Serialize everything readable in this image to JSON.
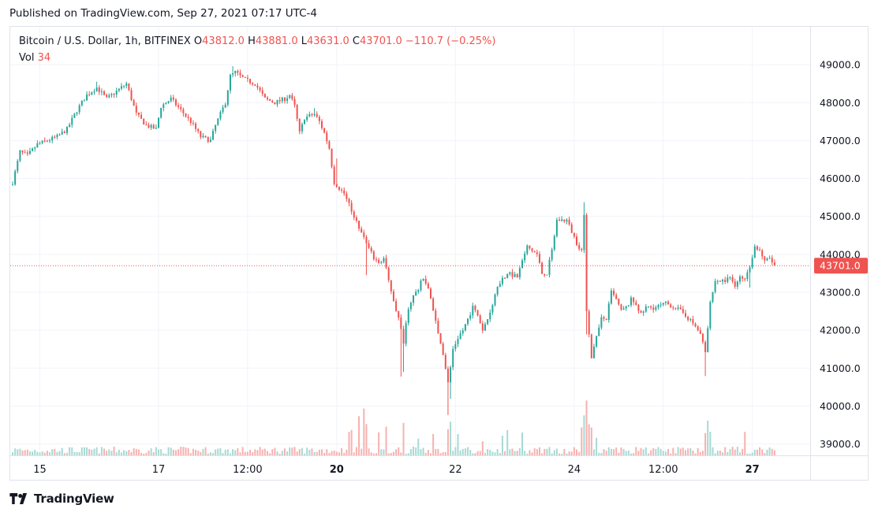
{
  "header": {
    "published": "Published on TradingView.com, Sep 27, 2021 07:17 UTC-4"
  },
  "legend": {
    "symbol": "Bitcoin / U.S. Dollar, 1h, BITFINEX",
    "o_label": "O",
    "o_value": "43812.0",
    "h_label": "H",
    "h_value": "43881.0",
    "l_label": "L",
    "l_value": "43631.0",
    "c_label": "C",
    "c_value": "43701.0",
    "change": "−110.7 (−0.25%)",
    "vol_label": "Vol",
    "vol_value": "34"
  },
  "footer": {
    "brand": "TradingView",
    "logo_icon": "tradingview-logo-icon"
  },
  "colors": {
    "up": "#26a69a",
    "down": "#ef5350",
    "up_vol": "#a8d9d4",
    "down_vol": "#f5b2b0",
    "grid": "#f0f3fa",
    "text": "#131722"
  },
  "chart_data": {
    "type": "candlestick",
    "interval": "1h",
    "ylim": [
      38700,
      50000
    ],
    "y_ticks": [
      "49000.0",
      "48000.0",
      "47000.0",
      "46000.0",
      "45000.0",
      "44000.0",
      "43000.0",
      "42000.0",
      "41000.0",
      "40000.0",
      "39000.0"
    ],
    "y_tick_values": [
      49000,
      48000,
      47000,
      46000,
      45000,
      44000,
      43000,
      42000,
      41000,
      40000,
      39000
    ],
    "x_ticks": [
      {
        "label": "15",
        "bar": 11,
        "bold": false
      },
      {
        "label": "17",
        "bar": 59,
        "bold": false
      },
      {
        "label": "12:00",
        "bar": 95,
        "bold": false
      },
      {
        "label": "20",
        "bar": 131,
        "bold": true
      },
      {
        "label": "22",
        "bar": 179,
        "bold": false
      },
      {
        "label": "24",
        "bar": 227,
        "bold": false
      },
      {
        "label": "12:00",
        "bar": 263,
        "bold": false
      },
      {
        "label": "27",
        "bar": 299,
        "bold": true
      }
    ],
    "current_price": 43701,
    "current_price_label": "43701.0",
    "anchors": [
      [
        0,
        45900
      ],
      [
        3,
        46700
      ],
      [
        6,
        46600
      ],
      [
        10,
        46900
      ],
      [
        14,
        47000
      ],
      [
        18,
        47100
      ],
      [
        22,
        47300
      ],
      [
        26,
        47800
      ],
      [
        30,
        48200
      ],
      [
        34,
        48400
      ],
      [
        38,
        48100
      ],
      [
        42,
        48300
      ],
      [
        46,
        48500
      ],
      [
        48,
        48100
      ],
      [
        50,
        47700
      ],
      [
        54,
        47400
      ],
      [
        58,
        47300
      ],
      [
        60,
        47900
      ],
      [
        64,
        48100
      ],
      [
        68,
        47800
      ],
      [
        72,
        47500
      ],
      [
        76,
        47100
      ],
      [
        80,
        47000
      ],
      [
        82,
        47400
      ],
      [
        86,
        48000
      ],
      [
        88,
        48700
      ],
      [
        90,
        48800
      ],
      [
        94,
        48600
      ],
      [
        98,
        48500
      ],
      [
        102,
        48100
      ],
      [
        106,
        48000
      ],
      [
        110,
        48100
      ],
      [
        112,
        48200
      ],
      [
        114,
        47900
      ],
      [
        116,
        47200
      ],
      [
        118,
        47600
      ],
      [
        122,
        47700
      ],
      [
        124,
        47500
      ],
      [
        126,
        47200
      ],
      [
        128,
        46800
      ],
      [
        130,
        45900
      ],
      [
        134,
        45600
      ],
      [
        138,
        45000
      ],
      [
        142,
        44400
      ],
      [
        146,
        43900
      ],
      [
        148,
        43800
      ],
      [
        150,
        43900
      ],
      [
        152,
        43300
      ],
      [
        154,
        42800
      ],
      [
        156,
        42300
      ],
      [
        158,
        41700
      ],
      [
        160,
        42600
      ],
      [
        162,
        42900
      ],
      [
        164,
        43100
      ],
      [
        166,
        43400
      ],
      [
        168,
        43100
      ],
      [
        170,
        42500
      ],
      [
        172,
        41900
      ],
      [
        174,
        41400
      ],
      [
        176,
        40600
      ],
      [
        178,
        41500
      ],
      [
        180,
        41800
      ],
      [
        182,
        42000
      ],
      [
        184,
        42300
      ],
      [
        186,
        42600
      ],
      [
        188,
        42400
      ],
      [
        190,
        42000
      ],
      [
        192,
        42300
      ],
      [
        194,
        42700
      ],
      [
        196,
        43200
      ],
      [
        200,
        43500
      ],
      [
        204,
        43400
      ],
      [
        206,
        43800
      ],
      [
        208,
        44200
      ],
      [
        212,
        44000
      ],
      [
        214,
        43500
      ],
      [
        216,
        43500
      ],
      [
        218,
        44100
      ],
      [
        220,
        44900
      ],
      [
        224,
        44900
      ],
      [
        226,
        44600
      ],
      [
        228,
        44300
      ],
      [
        230,
        44100
      ],
      [
        231,
        45000
      ],
      [
        232,
        42500
      ],
      [
        234,
        41300
      ],
      [
        236,
        41800
      ],
      [
        238,
        42300
      ],
      [
        240,
        42300
      ],
      [
        242,
        43000
      ],
      [
        244,
        42800
      ],
      [
        246,
        42500
      ],
      [
        248,
        42600
      ],
      [
        250,
        42800
      ],
      [
        252,
        42700
      ],
      [
        254,
        42400
      ],
      [
        256,
        42600
      ],
      [
        260,
        42600
      ],
      [
        264,
        42700
      ],
      [
        268,
        42600
      ],
      [
        272,
        42400
      ],
      [
        276,
        42100
      ],
      [
        278,
        41900
      ],
      [
        280,
        41400
      ],
      [
        282,
        42700
      ],
      [
        284,
        43300
      ],
      [
        288,
        43300
      ],
      [
        290,
        43400
      ],
      [
        292,
        43200
      ],
      [
        294,
        43400
      ],
      [
        296,
        43300
      ],
      [
        298,
        43700
      ],
      [
        300,
        44200
      ],
      [
        302,
        44100
      ],
      [
        304,
        43800
      ],
      [
        306,
        43900
      ],
      [
        308,
        43701
      ]
    ]
  }
}
